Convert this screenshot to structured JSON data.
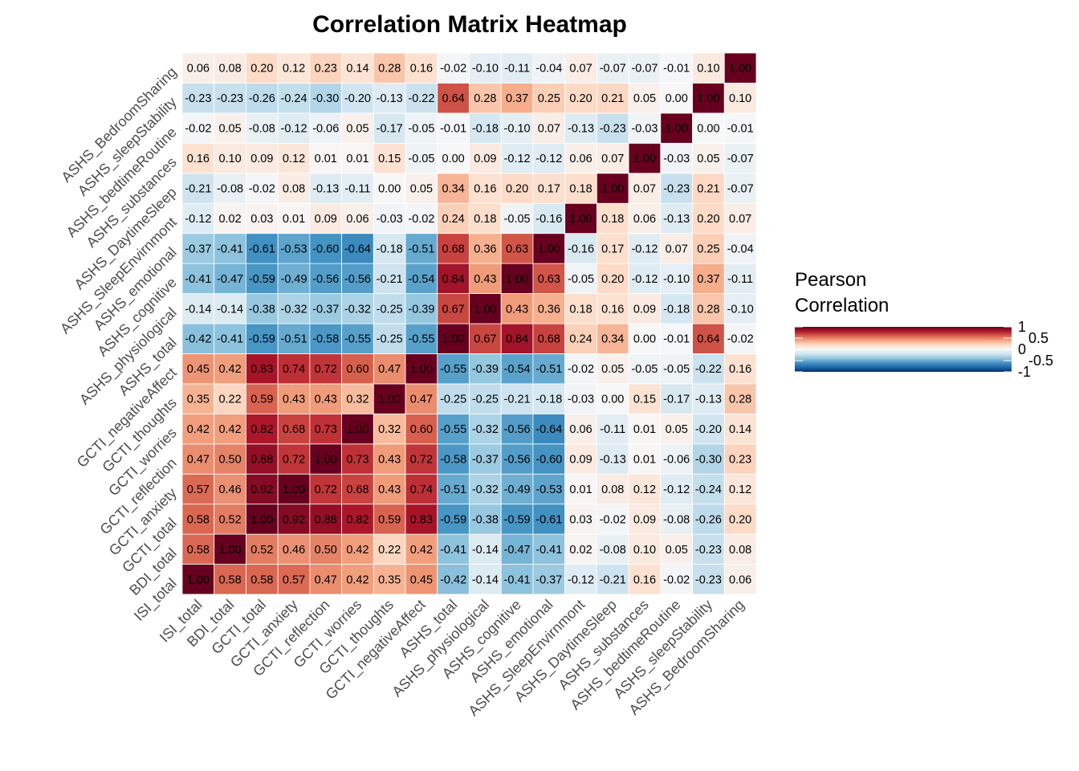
{
  "chart_data": {
    "type": "heatmap",
    "title": "Correlation Matrix Heatmap",
    "xlabel": "",
    "ylabel": "",
    "variables": [
      "ISI_total",
      "BDI_total",
      "GCTI_total",
      "GCTI_anxiety",
      "GCTI_reflection",
      "GCTI_worries",
      "GCTI_thoughts",
      "GCTI_negativeAffect",
      "ASHS_total",
      "ASHS_physiological",
      "ASHS_cognitive",
      "ASHS_emotional",
      "ASHS_SleepEnvirnmont",
      "ASHS_DaytimeSleep",
      "ASHS_substances",
      "ASHS_bedtimeRoutine",
      "ASHS_sleepStability",
      "ASHS_BedroomSharing"
    ],
    "values": [
      [
        1.0,
        0.58,
        0.58,
        0.57,
        0.47,
        0.42,
        0.35,
        0.45,
        -0.42,
        -0.14,
        -0.41,
        -0.37,
        -0.12,
        -0.21,
        0.16,
        -0.02,
        -0.23,
        0.06
      ],
      [
        0.58,
        1.0,
        0.52,
        0.46,
        0.5,
        0.42,
        0.22,
        0.42,
        -0.41,
        -0.14,
        -0.47,
        -0.41,
        0.02,
        -0.08,
        0.1,
        0.05,
        -0.23,
        0.08
      ],
      [
        0.58,
        0.52,
        1.0,
        0.92,
        0.88,
        0.82,
        0.59,
        0.83,
        -0.59,
        -0.38,
        -0.59,
        -0.61,
        0.03,
        -0.02,
        0.09,
        -0.08,
        -0.26,
        0.2
      ],
      [
        0.57,
        0.46,
        0.92,
        1.0,
        0.72,
        0.68,
        0.43,
        0.74,
        -0.51,
        -0.32,
        -0.49,
        -0.53,
        0.01,
        0.08,
        0.12,
        -0.12,
        -0.24,
        0.12
      ],
      [
        0.47,
        0.5,
        0.88,
        0.72,
        1.0,
        0.73,
        0.43,
        0.72,
        -0.58,
        -0.37,
        -0.56,
        -0.6,
        0.09,
        -0.13,
        0.01,
        -0.06,
        -0.3,
        0.23
      ],
      [
        0.42,
        0.42,
        0.82,
        0.68,
        0.73,
        1.0,
        0.32,
        0.6,
        -0.55,
        -0.32,
        -0.56,
        -0.64,
        0.06,
        -0.11,
        0.01,
        0.05,
        -0.2,
        0.14
      ],
      [
        0.35,
        0.22,
        0.59,
        0.43,
        0.43,
        0.32,
        1.0,
        0.47,
        -0.25,
        -0.25,
        -0.21,
        -0.18,
        -0.03,
        0.0,
        0.15,
        -0.17,
        -0.13,
        0.28
      ],
      [
        0.45,
        0.42,
        0.83,
        0.74,
        0.72,
        0.6,
        0.47,
        1.0,
        -0.55,
        -0.39,
        -0.54,
        -0.51,
        -0.02,
        0.05,
        -0.05,
        -0.05,
        -0.22,
        0.16
      ],
      [
        -0.42,
        -0.41,
        -0.59,
        -0.51,
        -0.58,
        -0.55,
        -0.25,
        -0.55,
        1.0,
        0.67,
        0.84,
        0.68,
        0.24,
        0.34,
        0.0,
        -0.01,
        0.64,
        -0.02
      ],
      [
        -0.14,
        -0.14,
        -0.38,
        -0.32,
        -0.37,
        -0.32,
        -0.25,
        -0.39,
        0.67,
        1.0,
        0.43,
        0.36,
        0.18,
        0.16,
        0.09,
        -0.18,
        0.28,
        -0.1
      ],
      [
        -0.41,
        -0.47,
        -0.59,
        -0.49,
        -0.56,
        -0.56,
        -0.21,
        -0.54,
        0.84,
        0.43,
        1.0,
        0.63,
        -0.05,
        0.2,
        -0.12,
        -0.1,
        0.37,
        -0.11
      ],
      [
        -0.37,
        -0.41,
        -0.61,
        -0.53,
        -0.6,
        -0.64,
        -0.18,
        -0.51,
        0.68,
        0.36,
        0.63,
        1.0,
        -0.16,
        0.17,
        -0.12,
        0.07,
        0.25,
        -0.04
      ],
      [
        -0.12,
        0.02,
        0.03,
        0.01,
        0.09,
        0.06,
        -0.03,
        -0.02,
        0.24,
        0.18,
        -0.05,
        -0.16,
        1.0,
        0.18,
        0.06,
        -0.13,
        0.2,
        0.07
      ],
      [
        -0.21,
        -0.08,
        -0.02,
        0.08,
        -0.13,
        -0.11,
        0.0,
        0.05,
        0.34,
        0.16,
        0.2,
        0.17,
        0.18,
        1.0,
        0.07,
        -0.23,
        0.21,
        -0.07
      ],
      [
        0.16,
        0.1,
        0.09,
        0.12,
        0.01,
        0.01,
        0.15,
        -0.05,
        0.0,
        0.09,
        -0.12,
        -0.12,
        0.06,
        0.07,
        1.0,
        -0.03,
        0.05,
        -0.07
      ],
      [
        -0.02,
        0.05,
        -0.08,
        -0.12,
        -0.06,
        0.05,
        -0.17,
        -0.05,
        -0.01,
        -0.18,
        -0.1,
        0.07,
        -0.13,
        -0.23,
        -0.03,
        1.0,
        0.0,
        -0.01
      ],
      [
        -0.23,
        -0.23,
        -0.26,
        -0.24,
        -0.3,
        -0.2,
        -0.13,
        -0.22,
        0.64,
        0.28,
        0.37,
        0.25,
        0.2,
        0.21,
        0.05,
        0.0,
        1.0,
        0.1
      ],
      [
        0.06,
        0.08,
        0.2,
        0.12,
        0.23,
        0.14,
        0.28,
        0.16,
        -0.02,
        -0.1,
        -0.11,
        -0.04,
        0.07,
        -0.07,
        -0.07,
        -0.01,
        0.1,
        1.0
      ]
    ],
    "value_format": "2 decimals",
    "legend": {
      "title_lines": [
        "Pearson",
        "Correlation"
      ],
      "ticks": [
        1,
        0.5,
        0,
        -0.5,
        -1
      ],
      "placement": "right"
    },
    "color_scale": {
      "low": "#053061",
      "mid": "#f7f7f7",
      "high": "#67001f",
      "stops": [
        "#053061",
        "#2166ac",
        "#4393c3",
        "#92c5de",
        "#d1e5f0",
        "#f7f7f7",
        "#fddbc7",
        "#f4a582",
        "#d6604d",
        "#b2182b",
        "#67001f"
      ]
    },
    "grid": false
  }
}
